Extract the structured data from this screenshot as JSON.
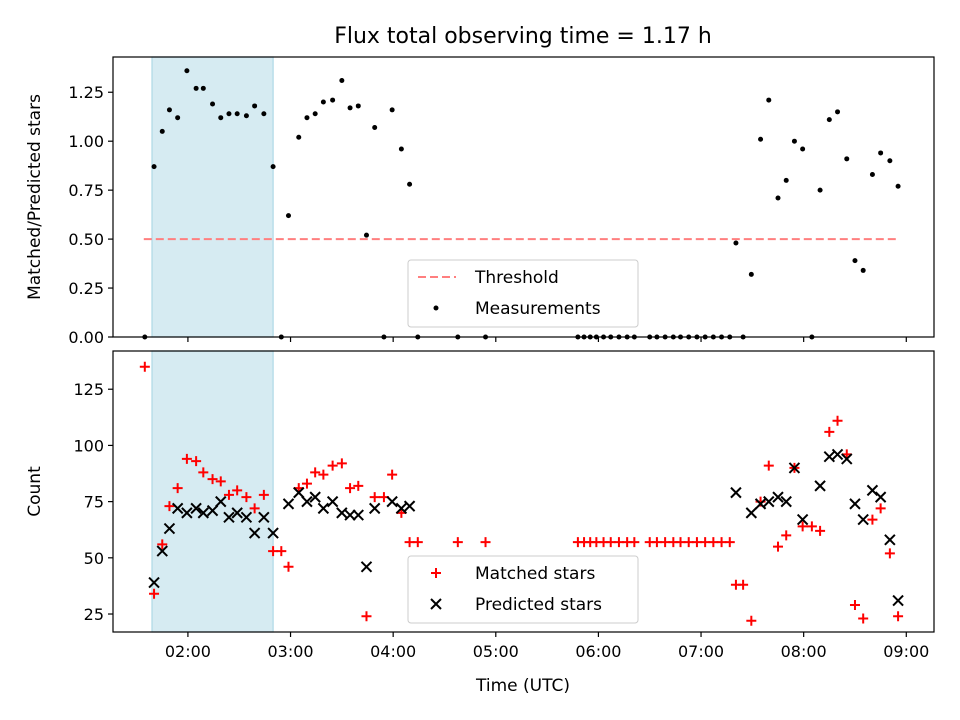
{
  "chart_data": {
    "type": "scatter",
    "title": "Flux total observing time = 1.17 h",
    "xlabel": "Time (UTC)",
    "xlim": [
      1.27,
      9.27
    ],
    "xticks": [
      2,
      3,
      4,
      5,
      6,
      7,
      8,
      9
    ],
    "xtick_labels": [
      "02:00",
      "03:00",
      "04:00",
      "05:00",
      "06:00",
      "07:00",
      "08:00",
      "09:00"
    ],
    "shaded_interval": [
      1.65,
      2.83
    ],
    "shade_color": "#add8e6",
    "panels": [
      {
        "ylabel": "Matched/Predicted stars",
        "ylim": [
          0,
          1.43
        ],
        "yticks": [
          0,
          0.25,
          0.5,
          0.75,
          1.0,
          1.25
        ],
        "ytick_labels": [
          "0.00",
          "0.25",
          "0.50",
          "0.75",
          "1.00",
          "1.25"
        ],
        "legend_position": "lower-center",
        "threshold": {
          "name": "Threshold",
          "y": 0.5,
          "x_range": [
            1.57,
            8.92
          ],
          "color": "#ff7f7f"
        },
        "series": [
          {
            "name": "Measurements",
            "marker": "dot",
            "color": "#000000",
            "points": [
              [
                1.58,
                0.0
              ],
              [
                1.67,
                0.87
              ],
              [
                1.75,
                1.05
              ],
              [
                1.82,
                1.16
              ],
              [
                1.9,
                1.12
              ],
              [
                1.99,
                1.36
              ],
              [
                2.08,
                1.27
              ],
              [
                2.15,
                1.27
              ],
              [
                2.24,
                1.19
              ],
              [
                2.32,
                1.12
              ],
              [
                2.4,
                1.14
              ],
              [
                2.48,
                1.14
              ],
              [
                2.57,
                1.13
              ],
              [
                2.65,
                1.18
              ],
              [
                2.74,
                1.14
              ],
              [
                2.83,
                0.87
              ],
              [
                2.91,
                0.0
              ],
              [
                2.98,
                0.62
              ],
              [
                3.08,
                1.02
              ],
              [
                3.16,
                1.12
              ],
              [
                3.24,
                1.14
              ],
              [
                3.32,
                1.2
              ],
              [
                3.41,
                1.21
              ],
              [
                3.5,
                1.31
              ],
              [
                3.58,
                1.17
              ],
              [
                3.66,
                1.18
              ],
              [
                3.74,
                0.52
              ],
              [
                3.82,
                1.07
              ],
              [
                3.91,
                0.0
              ],
              [
                3.99,
                1.16
              ],
              [
                4.08,
                0.96
              ],
              [
                4.16,
                0.78
              ],
              [
                4.24,
                0.0
              ],
              [
                4.63,
                0.0
              ],
              [
                4.9,
                0.0
              ],
              [
                5.8,
                0.0
              ],
              [
                5.86,
                0.0
              ],
              [
                5.92,
                0.0
              ],
              [
                5.98,
                0.0
              ],
              [
                6.05,
                0.0
              ],
              [
                6.12,
                0.0
              ],
              [
                6.2,
                0.0
              ],
              [
                6.28,
                0.0
              ],
              [
                6.35,
                0.0
              ],
              [
                6.5,
                0.0
              ],
              [
                6.57,
                0.0
              ],
              [
                6.65,
                0.0
              ],
              [
                6.73,
                0.0
              ],
              [
                6.8,
                0.0
              ],
              [
                6.88,
                0.0
              ],
              [
                6.96,
                0.0
              ],
              [
                7.04,
                0.0
              ],
              [
                7.12,
                0.0
              ],
              [
                7.2,
                0.0
              ],
              [
                7.28,
                0.0
              ],
              [
                7.34,
                0.48
              ],
              [
                7.41,
                0.0
              ],
              [
                7.49,
                0.32
              ],
              [
                7.58,
                1.01
              ],
              [
                7.66,
                1.21
              ],
              [
                7.75,
                0.71
              ],
              [
                7.83,
                0.8
              ],
              [
                7.91,
                1.0
              ],
              [
                7.99,
                0.96
              ],
              [
                8.08,
                0.0
              ],
              [
                8.16,
                0.75
              ],
              [
                8.25,
                1.11
              ],
              [
                8.33,
                1.15
              ],
              [
                8.42,
                0.91
              ],
              [
                8.5,
                0.39
              ],
              [
                8.58,
                0.34
              ],
              [
                8.67,
                0.83
              ],
              [
                8.75,
                0.94
              ],
              [
                8.84,
                0.9
              ],
              [
                8.92,
                0.77
              ]
            ]
          }
        ]
      },
      {
        "ylabel": "Count",
        "ylim": [
          17,
          142
        ],
        "yticks": [
          25,
          50,
          75,
          100,
          125
        ],
        "ytick_labels": [
          "25",
          "50",
          "75",
          "100",
          "125"
        ],
        "legend_position": "lower-center",
        "series": [
          {
            "name": "Matched stars",
            "marker": "plus",
            "color": "#ff0000",
            "points": [
              [
                1.58,
                135
              ],
              [
                1.67,
                34
              ],
              [
                1.75,
                56
              ],
              [
                1.82,
                73
              ],
              [
                1.9,
                81
              ],
              [
                1.99,
                94
              ],
              [
                2.08,
                93
              ],
              [
                2.15,
                88
              ],
              [
                2.24,
                85
              ],
              [
                2.32,
                84
              ],
              [
                2.4,
                78
              ],
              [
                2.48,
                80
              ],
              [
                2.57,
                77
              ],
              [
                2.65,
                72
              ],
              [
                2.74,
                78
              ],
              [
                2.83,
                53
              ],
              [
                2.91,
                53
              ],
              [
                2.98,
                46
              ],
              [
                3.08,
                81
              ],
              [
                3.16,
                83
              ],
              [
                3.24,
                88
              ],
              [
                3.32,
                87
              ],
              [
                3.41,
                91
              ],
              [
                3.5,
                92
              ],
              [
                3.58,
                81
              ],
              [
                3.66,
                82
              ],
              [
                3.74,
                24
              ],
              [
                3.82,
                77
              ],
              [
                3.91,
                77
              ],
              [
                3.99,
                87
              ],
              [
                4.08,
                70
              ],
              [
                4.16,
                57
              ],
              [
                4.24,
                57
              ],
              [
                4.63,
                57
              ],
              [
                4.9,
                57
              ],
              [
                5.8,
                57
              ],
              [
                5.86,
                57
              ],
              [
                5.92,
                57
              ],
              [
                5.98,
                57
              ],
              [
                6.05,
                57
              ],
              [
                6.12,
                57
              ],
              [
                6.2,
                57
              ],
              [
                6.28,
                57
              ],
              [
                6.35,
                57
              ],
              [
                6.5,
                57
              ],
              [
                6.57,
                57
              ],
              [
                6.65,
                57
              ],
              [
                6.73,
                57
              ],
              [
                6.8,
                57
              ],
              [
                6.88,
                57
              ],
              [
                6.96,
                57
              ],
              [
                7.04,
                57
              ],
              [
                7.12,
                57
              ],
              [
                7.2,
                57
              ],
              [
                7.28,
                57
              ],
              [
                7.34,
                38
              ],
              [
                7.41,
                38
              ],
              [
                7.49,
                22
              ],
              [
                7.58,
                75
              ],
              [
                7.66,
                91
              ],
              [
                7.75,
                55
              ],
              [
                7.83,
                60
              ],
              [
                7.91,
                90
              ],
              [
                7.99,
                64
              ],
              [
                8.08,
                64
              ],
              [
                8.16,
                62
              ],
              [
                8.25,
                106
              ],
              [
                8.33,
                111
              ],
              [
                8.42,
                96
              ],
              [
                8.5,
                29
              ],
              [
                8.58,
                23
              ],
              [
                8.67,
                67
              ],
              [
                8.75,
                72
              ],
              [
                8.84,
                52
              ],
              [
                8.92,
                24
              ]
            ]
          },
          {
            "name": "Predicted stars",
            "marker": "x",
            "color": "#000000",
            "points": [
              [
                1.67,
                39
              ],
              [
                1.75,
                53
              ],
              [
                1.82,
                63
              ],
              [
                1.9,
                72
              ],
              [
                1.99,
                70
              ],
              [
                2.08,
                72
              ],
              [
                2.15,
                70
              ],
              [
                2.24,
                71
              ],
              [
                2.32,
                75
              ],
              [
                2.4,
                68
              ],
              [
                2.48,
                70
              ],
              [
                2.57,
                68
              ],
              [
                2.65,
                61
              ],
              [
                2.74,
                68
              ],
              [
                2.83,
                61
              ],
              [
                2.98,
                74
              ],
              [
                3.08,
                79
              ],
              [
                3.16,
                75
              ],
              [
                3.24,
                77
              ],
              [
                3.32,
                72
              ],
              [
                3.41,
                75
              ],
              [
                3.5,
                70
              ],
              [
                3.58,
                69
              ],
              [
                3.66,
                69
              ],
              [
                3.74,
                46
              ],
              [
                3.82,
                72
              ],
              [
                3.99,
                75
              ],
              [
                4.08,
                72
              ],
              [
                4.16,
                73
              ],
              [
                7.34,
                79
              ],
              [
                7.49,
                70
              ],
              [
                7.58,
                74
              ],
              [
                7.66,
                75
              ],
              [
                7.75,
                77
              ],
              [
                7.83,
                75
              ],
              [
                7.91,
                90
              ],
              [
                7.99,
                67
              ],
              [
                8.16,
                82
              ],
              [
                8.25,
                95
              ],
              [
                8.33,
                96
              ],
              [
                8.42,
                94
              ],
              [
                8.5,
                74
              ],
              [
                8.58,
                67
              ],
              [
                8.67,
                80
              ],
              [
                8.75,
                77
              ],
              [
                8.84,
                58
              ],
              [
                8.92,
                31
              ]
            ]
          }
        ]
      }
    ]
  }
}
